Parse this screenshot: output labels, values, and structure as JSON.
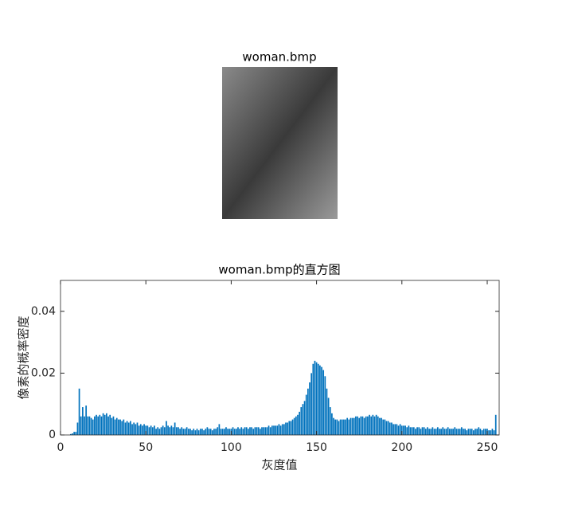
{
  "image_title": "woman.bmp",
  "chart_data": {
    "type": "bar",
    "title": "woman.bmp的直方图",
    "xlabel": "灰度值",
    "ylabel": "像素的概率密度",
    "color": "#0072bd",
    "xlim": [
      0,
      257
    ],
    "xticks": [
      0,
      50,
      100,
      150,
      200,
      250
    ],
    "ylim": [
      0,
      0.05
    ],
    "yticks": [
      0,
      0.02,
      0.04
    ],
    "x": [
      0,
      1,
      2,
      3,
      4,
      5,
      6,
      7,
      8,
      9,
      10,
      11,
      12,
      13,
      14,
      15,
      16,
      17,
      18,
      19,
      20,
      21,
      22,
      23,
      24,
      25,
      26,
      27,
      28,
      29,
      30,
      31,
      32,
      33,
      34,
      35,
      36,
      37,
      38,
      39,
      40,
      41,
      42,
      43,
      44,
      45,
      46,
      47,
      48,
      49,
      50,
      51,
      52,
      53,
      54,
      55,
      56,
      57,
      58,
      59,
      60,
      61,
      62,
      63,
      64,
      65,
      66,
      67,
      68,
      69,
      70,
      71,
      72,
      73,
      74,
      75,
      76,
      77,
      78,
      79,
      80,
      81,
      82,
      83,
      84,
      85,
      86,
      87,
      88,
      89,
      90,
      91,
      92,
      93,
      94,
      95,
      96,
      97,
      98,
      99,
      100,
      101,
      102,
      103,
      104,
      105,
      106,
      107,
      108,
      109,
      110,
      111,
      112,
      113,
      114,
      115,
      116,
      117,
      118,
      119,
      120,
      121,
      122,
      123,
      124,
      125,
      126,
      127,
      128,
      129,
      130,
      131,
      132,
      133,
      134,
      135,
      136,
      137,
      138,
      139,
      140,
      141,
      142,
      143,
      144,
      145,
      146,
      147,
      148,
      149,
      150,
      151,
      152,
      153,
      154,
      155,
      156,
      157,
      158,
      159,
      160,
      161,
      162,
      163,
      164,
      165,
      166,
      167,
      168,
      169,
      170,
      171,
      172,
      173,
      174,
      175,
      176,
      177,
      178,
      179,
      180,
      181,
      182,
      183,
      184,
      185,
      186,
      187,
      188,
      189,
      190,
      191,
      192,
      193,
      194,
      195,
      196,
      197,
      198,
      199,
      200,
      201,
      202,
      203,
      204,
      205,
      206,
      207,
      208,
      209,
      210,
      211,
      212,
      213,
      214,
      215,
      216,
      217,
      218,
      219,
      220,
      221,
      222,
      223,
      224,
      225,
      226,
      227,
      228,
      229,
      230,
      231,
      232,
      233,
      234,
      235,
      236,
      237,
      238,
      239,
      240,
      241,
      242,
      243,
      244,
      245,
      246,
      247,
      248,
      249,
      250,
      251,
      252,
      253,
      254,
      255
    ],
    "values": [
      0,
      0,
      0,
      0,
      0,
      0,
      0.0003,
      0.0005,
      0.001,
      0.001,
      0.004,
      0.015,
      0.006,
      0.009,
      0.006,
      0.0095,
      0.006,
      0.006,
      0.0055,
      0.005,
      0.006,
      0.0065,
      0.006,
      0.0065,
      0.006,
      0.007,
      0.0065,
      0.007,
      0.006,
      0.0065,
      0.0055,
      0.006,
      0.005,
      0.0055,
      0.005,
      0.005,
      0.0045,
      0.005,
      0.004,
      0.0045,
      0.004,
      0.0045,
      0.0035,
      0.004,
      0.0035,
      0.004,
      0.003,
      0.0035,
      0.003,
      0.0035,
      0.003,
      0.003,
      0.0025,
      0.003,
      0.0025,
      0.003,
      0.002,
      0.0025,
      0.002,
      0.0025,
      0.003,
      0.0025,
      0.0045,
      0.003,
      0.0025,
      0.003,
      0.0025,
      0.004,
      0.0025,
      0.0025,
      0.002,
      0.0025,
      0.002,
      0.002,
      0.0025,
      0.002,
      0.002,
      0.0015,
      0.002,
      0.0015,
      0.002,
      0.0015,
      0.002,
      0.002,
      0.0015,
      0.002,
      0.0025,
      0.002,
      0.002,
      0.0015,
      0.002,
      0.002,
      0.0025,
      0.0035,
      0.002,
      0.002,
      0.002,
      0.0025,
      0.002,
      0.002,
      0.002,
      0.0025,
      0.002,
      0.002,
      0.0025,
      0.002,
      0.0025,
      0.002,
      0.0025,
      0.0025,
      0.002,
      0.0025,
      0.0025,
      0.002,
      0.0025,
      0.0025,
      0.0025,
      0.002,
      0.0025,
      0.0025,
      0.0025,
      0.0025,
      0.003,
      0.0025,
      0.003,
      0.003,
      0.003,
      0.003,
      0.0035,
      0.003,
      0.0035,
      0.0035,
      0.004,
      0.004,
      0.0045,
      0.0045,
      0.005,
      0.0055,
      0.006,
      0.0065,
      0.0075,
      0.009,
      0.01,
      0.011,
      0.013,
      0.015,
      0.017,
      0.02,
      0.023,
      0.024,
      0.0235,
      0.023,
      0.0225,
      0.022,
      0.021,
      0.019,
      0.015,
      0.012,
      0.009,
      0.007,
      0.0055,
      0.005,
      0.005,
      0.0045,
      0.005,
      0.005,
      0.005,
      0.005,
      0.0055,
      0.005,
      0.0055,
      0.0055,
      0.0055,
      0.006,
      0.006,
      0.0055,
      0.006,
      0.006,
      0.0055,
      0.006,
      0.006,
      0.0065,
      0.006,
      0.0065,
      0.006,
      0.0065,
      0.006,
      0.0055,
      0.0055,
      0.005,
      0.005,
      0.0045,
      0.0045,
      0.004,
      0.004,
      0.0035,
      0.0035,
      0.0035,
      0.003,
      0.0035,
      0.003,
      0.003,
      0.003,
      0.0025,
      0.003,
      0.0025,
      0.0025,
      0.0025,
      0.002,
      0.0025,
      0.0025,
      0.002,
      0.0025,
      0.0025,
      0.002,
      0.0025,
      0.002,
      0.002,
      0.0025,
      0.002,
      0.002,
      0.0025,
      0.002,
      0.002,
      0.0025,
      0.002,
      0.002,
      0.0025,
      0.002,
      0.002,
      0.002,
      0.0025,
      0.002,
      0.002,
      0.002,
      0.0025,
      0.002,
      0.002,
      0.0015,
      0.002,
      0.002,
      0.002,
      0.0015,
      0.002,
      0.002,
      0.0025,
      0.002,
      0.0015,
      0.002,
      0.002,
      0.002,
      0.0015,
      0.0015,
      0.002,
      0.0015,
      0.0065
    ]
  }
}
